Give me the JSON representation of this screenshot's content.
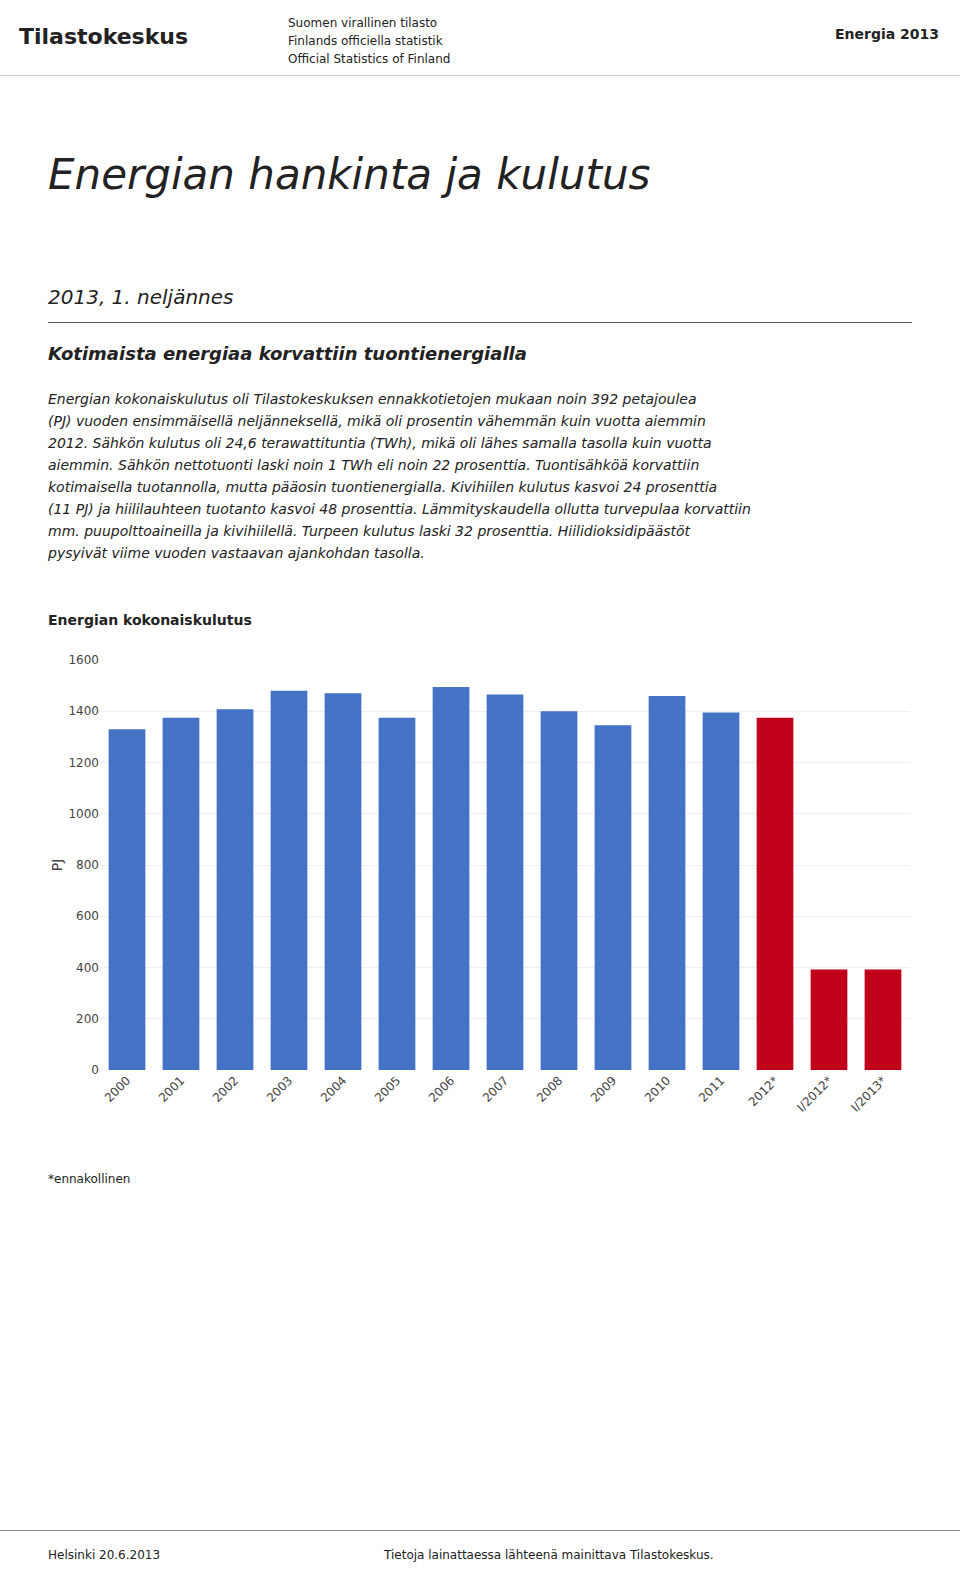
{
  "header": {
    "logo": "Tilastokeskus",
    "lines": [
      "Suomen virallinen tilasto",
      "Finlands officiella statistik",
      "Official Statistics of Finland"
    ],
    "right": "Energia 2013"
  },
  "title": "Energian hankinta ja kulutus",
  "subtitle": "2013, 1. neljännes",
  "section_heading": "Kotimaista energiaa korvattiin tuontienergialla",
  "body_text": [
    "Energian kokonaiskulutus oli Tilastokeskuksen ennakkotietojen mukaan noin 392 petajoulea",
    "(PJ) vuoden ensimmäisellä neljänneksellä, mikä oli prosentin vähemmän kuin vuotta aiemmin",
    "2012. Sähkön kulutus oli 24,6 terawattituntia (TWh), mikä oli lähes samalla tasolla kuin vuotta",
    "aiemmin. Sähkön nettotuonti laski noin 1 TWh eli noin 22 prosenttia. Tuontisähköä korvattiin",
    "kotimaisella tuotannolla, mutta pääosin tuontienergialla. Kivihiilen kulutus kasvoi 24 prosenttia",
    "(11 PJ) ja hiililauhteen tuotanto kasvoi 48 prosenttia. Lämmityskaudella ollutta turvepulaa korvattiin",
    "mm. puupolttoaineilla ja kivihiilellä. Turpeen kulutus laski 32 prosenttia. Hiilidioksidipäästöt",
    "pysyivät viime vuoden vastaavan ajankohdan tasolla."
  ],
  "footnote": "*ennakollinen",
  "footer": [
    "Helsinki 20.6.2013",
    "Tietoja lainattaessa lähteenä mainittava Tilastokeskus."
  ],
  "chart_data": {
    "type": "bar",
    "title": "Energian kokonaiskulutus",
    "y_label": "PJ",
    "categories": [
      "2000",
      "2001",
      "2002",
      "2003",
      "2004",
      "2005",
      "2006",
      "2007",
      "2008",
      "2009",
      "2010",
      "2011",
      "2012*",
      "I/2012*",
      "I/2013*"
    ],
    "values": [
      1330,
      1375,
      1408,
      1480,
      1470,
      1375,
      1495,
      1465,
      1400,
      1345,
      1460,
      1395,
      1375,
      392,
      392
    ],
    "colors": [
      "#4472C4",
      "#4472C4",
      "#4472C4",
      "#4472C4",
      "#4472C4",
      "#4472C4",
      "#4472C4",
      "#4472C4",
      "#4472C4",
      "#4472C4",
      "#4472C4",
      "#4472C4",
      "#C0001A",
      "#C0001A",
      "#C0001A"
    ],
    "ylim": [
      0,
      1600
    ],
    "yticks": [
      0,
      200,
      400,
      600,
      800,
      1000,
      1200,
      1400,
      1600
    ],
    "grid": true
  }
}
